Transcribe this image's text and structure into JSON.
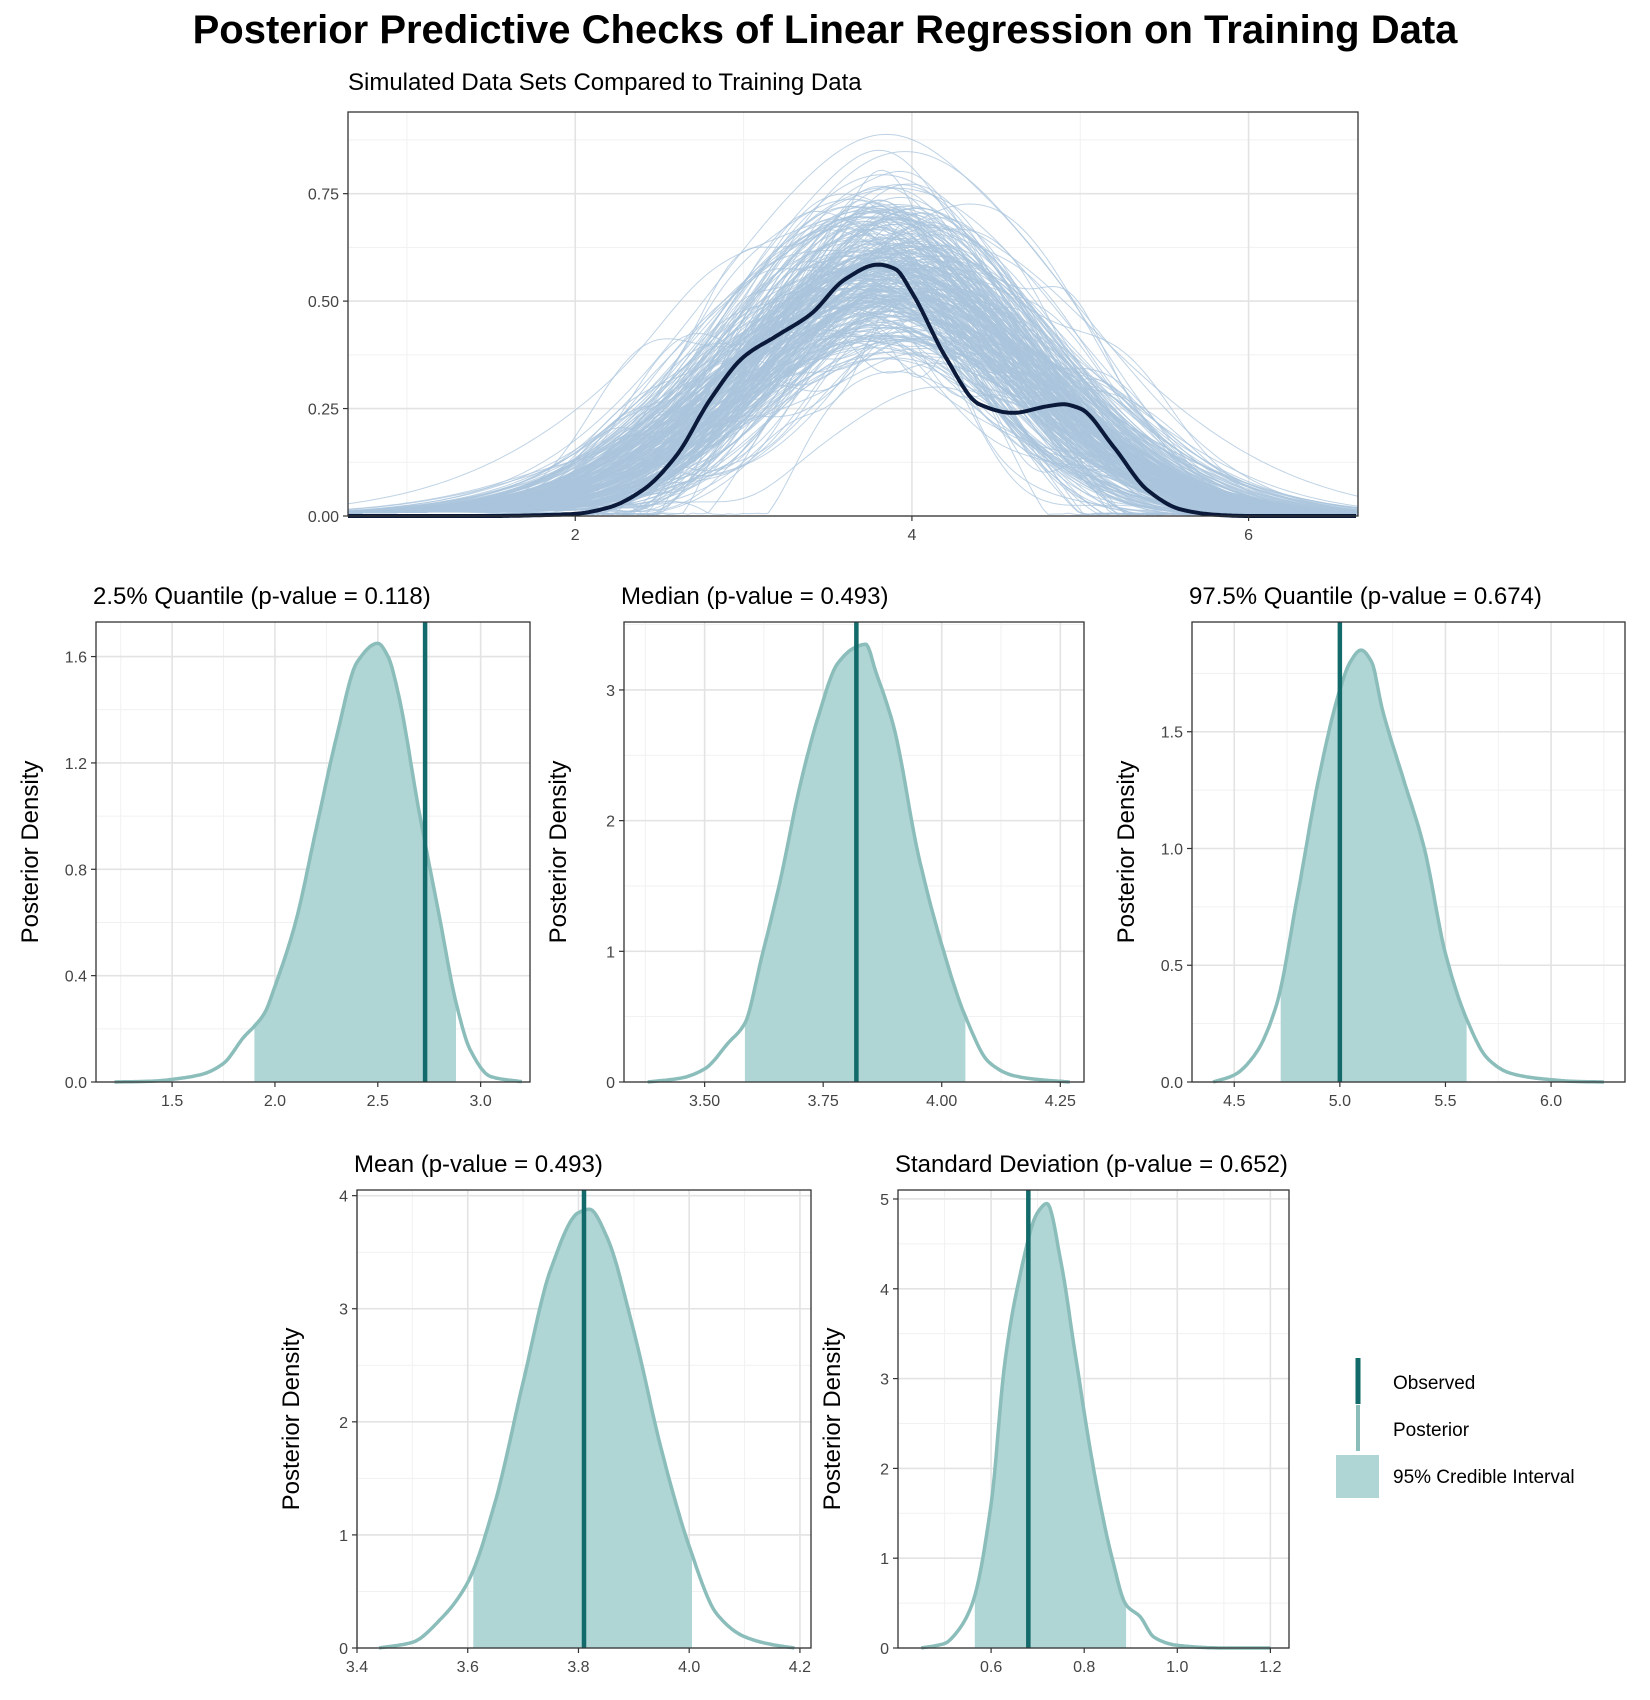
{
  "title": "Posterior Predictive Checks of Linear Regression on Training Data",
  "colors": {
    "observed": "#136a6a",
    "posterior_line": "#8bbdbb",
    "ci_fill": "#afd5d4",
    "sim_lines": "#a9c4dc",
    "obs_density": "#0b1a3a",
    "grid_major": "#e3e3e3",
    "grid_minor": "#f1f1f1",
    "panel_border": "#333333"
  },
  "legend": {
    "observed": "Observed",
    "posterior": "Posterior",
    "ci": "95% Credible Interval"
  },
  "chart_data": [
    {
      "id": "ppc",
      "type": "line",
      "title": "Simulated Data Sets Compared to Training Data",
      "xlabel": "",
      "ylabel": "",
      "xlim": [
        0.65,
        6.65
      ],
      "ylim": [
        0,
        0.94
      ],
      "xticks": [
        2,
        4,
        6
      ],
      "yticks": [
        0,
        0.25,
        0.5,
        0.75
      ],
      "ytick_labels": [
        "0.00",
        "0.25",
        "0.50",
        "0.75"
      ],
      "observed_density": {
        "x": [
          0.65,
          1.5,
          1.8,
          2.0,
          2.2,
          2.4,
          2.6,
          2.8,
          3.0,
          3.2,
          3.4,
          3.6,
          3.8,
          3.9,
          4.0,
          4.2,
          4.4,
          4.6,
          4.8,
          4.9,
          5.0,
          5.2,
          5.4,
          5.6,
          5.8,
          6.0,
          6.65
        ],
        "y": [
          0,
          0,
          0.002,
          0.005,
          0.02,
          0.06,
          0.14,
          0.27,
          0.37,
          0.42,
          0.47,
          0.55,
          0.585,
          0.575,
          0.52,
          0.37,
          0.26,
          0.24,
          0.255,
          0.26,
          0.25,
          0.16,
          0.06,
          0.015,
          0.003,
          0,
          0
        ]
      },
      "simulated_count": 100
    },
    {
      "id": "q025",
      "type": "area",
      "title": "2.5% Quantile  (p-value = 0.118)",
      "ylabel": "Posterior Density",
      "xlim": [
        1.13,
        3.24
      ],
      "ylim": [
        0,
        1.73
      ],
      "xticks": [
        1.5,
        2.0,
        2.5,
        3.0
      ],
      "xtick_labels": [
        "1.5",
        "2.0",
        "2.5",
        "3.0"
      ],
      "yticks": [
        0,
        0.4,
        0.8,
        1.2,
        1.6
      ],
      "ytick_labels": [
        "0.0",
        "0.4",
        "0.8",
        "1.2",
        "1.6"
      ],
      "observed": 2.73,
      "ci": [
        1.9,
        2.88
      ],
      "density": {
        "x": [
          1.22,
          1.4,
          1.55,
          1.65,
          1.75,
          1.85,
          1.9,
          1.95,
          2.0,
          2.1,
          2.2,
          2.3,
          2.4,
          2.5,
          2.55,
          2.6,
          2.7,
          2.8,
          2.88,
          2.95,
          3.05,
          3.2
        ],
        "y": [
          0,
          0.003,
          0.015,
          0.03,
          0.07,
          0.17,
          0.21,
          0.26,
          0.36,
          0.6,
          0.95,
          1.3,
          1.58,
          1.65,
          1.6,
          1.46,
          1.02,
          0.62,
          0.3,
          0.12,
          0.02,
          0.001
        ]
      }
    },
    {
      "id": "median",
      "type": "area",
      "title": "Median  (p-value = 0.493)",
      "ylabel": "Posterior Density",
      "xlim": [
        3.33,
        4.3
      ],
      "ylim": [
        0,
        3.52
      ],
      "xticks": [
        3.5,
        3.75,
        4.0,
        4.25
      ],
      "xtick_labels": [
        "3.50",
        "3.75",
        "4.00",
        "4.25"
      ],
      "yticks": [
        0,
        1,
        2,
        3
      ],
      "ytick_labels": [
        "0",
        "1",
        "2",
        "3"
      ],
      "observed": 3.82,
      "ci": [
        3.585,
        4.05
      ],
      "density": {
        "x": [
          3.38,
          3.45,
          3.5,
          3.55,
          3.585,
          3.62,
          3.66,
          3.7,
          3.74,
          3.78,
          3.82,
          3.84,
          3.86,
          3.9,
          3.95,
          4.0,
          4.05,
          4.1,
          4.15,
          4.2,
          4.27
        ],
        "y": [
          0,
          0.03,
          0.1,
          0.3,
          0.45,
          0.95,
          1.55,
          2.25,
          2.8,
          3.2,
          3.33,
          3.35,
          3.15,
          2.7,
          1.75,
          1.05,
          0.5,
          0.15,
          0.05,
          0.02,
          0
        ]
      }
    },
    {
      "id": "q975",
      "type": "area",
      "title": "97.5% Quantile  (p-value = 0.674)",
      "ylabel": "Posterior Density",
      "xlim": [
        4.3,
        6.35
      ],
      "ylim": [
        0,
        1.97
      ],
      "xticks": [
        4.5,
        5.0,
        5.5,
        6.0
      ],
      "xtick_labels": [
        "4.5",
        "5.0",
        "5.5",
        "6.0"
      ],
      "yticks": [
        0,
        0.5,
        1.0,
        1.5
      ],
      "ytick_labels": [
        "0.0",
        "0.5",
        "1.0",
        "1.5"
      ],
      "observed": 5.0,
      "ci": [
        4.72,
        5.6
      ],
      "density": {
        "x": [
          4.4,
          4.5,
          4.6,
          4.7,
          4.8,
          4.9,
          5.0,
          5.05,
          5.1,
          5.15,
          5.2,
          5.3,
          5.4,
          5.5,
          5.6,
          5.7,
          5.8,
          5.9,
          6.0,
          6.1,
          6.25
        ],
        "y": [
          0,
          0.03,
          0.12,
          0.33,
          0.8,
          1.3,
          1.68,
          1.8,
          1.85,
          1.8,
          1.6,
          1.3,
          1.0,
          0.55,
          0.27,
          0.1,
          0.04,
          0.02,
          0.01,
          0.003,
          0
        ]
      }
    },
    {
      "id": "mean",
      "type": "area",
      "title": "Mean  (p-value = 0.493)",
      "ylabel": "Posterior Density",
      "xlim": [
        3.4,
        4.22
      ],
      "ylim": [
        0,
        4.05
      ],
      "xticks": [
        3.4,
        3.6,
        3.8,
        4.0,
        4.2
      ],
      "xtick_labels": [
        "3.4",
        "3.6",
        "3.8",
        "4.0",
        "4.2"
      ],
      "yticks": [
        0,
        1,
        2,
        3,
        4
      ],
      "ytick_labels": [
        "0",
        "1",
        "2",
        "3",
        "4"
      ],
      "observed": 3.81,
      "ci": [
        3.61,
        4.005
      ],
      "density": {
        "x": [
          3.44,
          3.5,
          3.55,
          3.6,
          3.65,
          3.7,
          3.75,
          3.8,
          3.82,
          3.85,
          3.9,
          3.95,
          4.0,
          4.05,
          4.1,
          4.15,
          4.19
        ],
        "y": [
          0,
          0.05,
          0.25,
          0.58,
          1.3,
          2.35,
          3.35,
          3.85,
          3.88,
          3.65,
          2.8,
          1.75,
          0.9,
          0.3,
          0.1,
          0.03,
          0
        ]
      }
    },
    {
      "id": "sd",
      "type": "area",
      "title": "Standard Deviation  (p-value = 0.652)",
      "ylabel": "Posterior Density",
      "xlim": [
        0.4,
        1.24
      ],
      "ylim": [
        0,
        5.1
      ],
      "xticks": [
        0.6,
        0.8,
        1.0,
        1.2
      ],
      "xtick_labels": [
        "0.6",
        "0.8",
        "1.0",
        "1.2"
      ],
      "yticks": [
        0,
        1,
        2,
        3,
        4,
        5
      ],
      "ytick_labels": [
        "0",
        "1",
        "2",
        "3",
        "4",
        "5"
      ],
      "observed": 0.68,
      "ci": [
        0.565,
        0.89
      ],
      "density": {
        "x": [
          0.45,
          0.5,
          0.53,
          0.56,
          0.6,
          0.63,
          0.66,
          0.7,
          0.72,
          0.75,
          0.78,
          0.82,
          0.86,
          0.89,
          0.92,
          0.95,
          1.0,
          1.1,
          1.2
        ],
        "y": [
          0,
          0.05,
          0.2,
          0.5,
          1.6,
          3.2,
          4.1,
          4.85,
          4.95,
          4.3,
          3.3,
          2.0,
          1.0,
          0.48,
          0.35,
          0.12,
          0.03,
          0,
          0
        ]
      }
    }
  ]
}
